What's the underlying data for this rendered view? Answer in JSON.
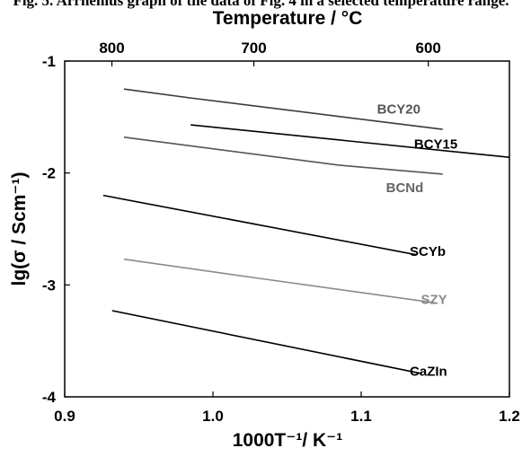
{
  "caption_fragment": "Fig. 5.  Arrhenius graph of the data of Fig. 4 in a selected temperature range.",
  "chart_data": {
    "type": "line",
    "xlabel": "1000T⁻¹/ K⁻¹",
    "ylabel": "lg(σ / Scm⁻¹)",
    "top_axis_label": "Temperature / °C",
    "xlim": [
      0.9,
      1.2
    ],
    "ylim": [
      -4,
      -1
    ],
    "x_ticks": [
      0.9,
      1.0,
      1.1,
      1.2
    ],
    "x_tick_labels": [
      "0.9",
      "1.0",
      "1.1",
      "1.2"
    ],
    "y_ticks": [
      -4,
      -3,
      -2,
      -1
    ],
    "y_tick_labels": [
      "-4",
      "-3",
      "-2",
      "-1"
    ],
    "top_ticks": [
      {
        "label": "800",
        "value": 800
      },
      {
        "label": "700",
        "value": 700
      },
      {
        "label": "600",
        "value": 600
      }
    ],
    "series": [
      {
        "name": "BCY20",
        "color": "#3a3a3a",
        "x": [
          0.94,
          0.985,
          1.155
        ],
        "y": [
          -1.25,
          -1.33,
          -1.61
        ]
      },
      {
        "name": "BCY15",
        "color": "#000000",
        "x": [
          0.985,
          1.2
        ],
        "y": [
          -1.57,
          -1.86
        ]
      },
      {
        "name": "BCNd",
        "color": "#555555",
        "x": [
          0.94,
          1.085,
          1.155
        ],
        "y": [
          -1.68,
          -1.93,
          -2.01
        ]
      },
      {
        "name": "SCYb",
        "color": "#000000",
        "x": [
          0.926,
          1.137
        ],
        "y": [
          -2.2,
          -2.73
        ]
      },
      {
        "name": "SZY",
        "color": "#8a8a8a",
        "x": [
          0.94,
          1.025,
          1.15
        ],
        "y": [
          -2.77,
          -2.93,
          -3.16
        ]
      },
      {
        "name": "CaZIn",
        "color": "#000000",
        "x": [
          0.932,
          1.14
        ],
        "y": [
          -3.23,
          -3.79
        ]
      }
    ],
    "series_labels": [
      {
        "series": "BCY20",
        "x": 1.14,
        "y": -1.43,
        "color": "#555555"
      },
      {
        "series": "BCY15",
        "x": 1.165,
        "y": -1.74,
        "color": "#000000"
      },
      {
        "series": "BCNd",
        "x": 1.142,
        "y": -2.13,
        "color": "#666666"
      },
      {
        "series": "SCYb",
        "x": 1.157,
        "y": -2.7,
        "color": "#000000"
      },
      {
        "series": "SZY",
        "x": 1.158,
        "y": -3.13,
        "color": "#8a8a8a"
      },
      {
        "series": "CaZIn",
        "x": 1.158,
        "y": -3.77,
        "color": "#000000"
      }
    ],
    "grid": false,
    "legend": "none"
  }
}
